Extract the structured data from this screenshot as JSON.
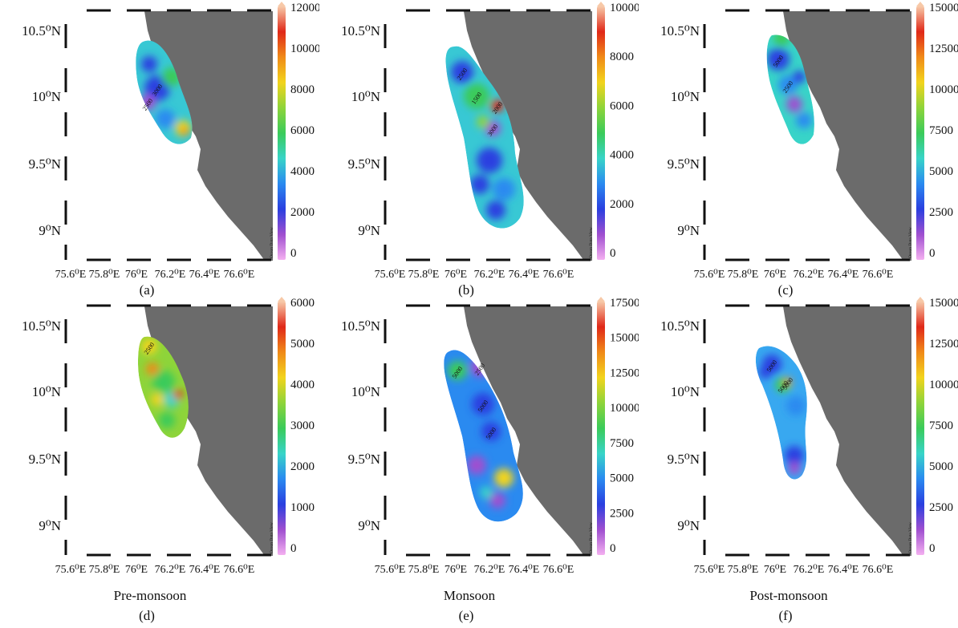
{
  "figure": {
    "panels": [
      {
        "id": "a",
        "label": "(a)",
        "season": "",
        "lat_ticks": [
          "10.5⁰N",
          "10⁰N",
          "9.5⁰N",
          "9⁰N"
        ],
        "lon_ticks": [
          "75.6⁰E",
          "75.8⁰E",
          "76⁰E",
          "76.2⁰E",
          "76.4⁰E",
          "76.6⁰E"
        ],
        "colorbar": {
          "ticks": [
            "12000",
            "10000",
            "8000",
            "6000",
            "4000",
            "2000",
            "0"
          ]
        },
        "contour_labels": [
          "3000",
          "2500"
        ],
        "watermark": "Ocean Data View"
      },
      {
        "id": "b",
        "label": "(b)",
        "season": "",
        "lat_ticks": [
          "10.5⁰N",
          "10⁰N",
          "9.5⁰N",
          "9⁰N"
        ],
        "lon_ticks": [
          "75.6⁰E",
          "75.8⁰E",
          "76⁰E",
          "76.2⁰E",
          "76.4⁰E",
          "76.6⁰E"
        ],
        "colorbar": {
          "ticks": [
            "10000",
            "8000",
            "6000",
            "4000",
            "2000",
            "0"
          ]
        },
        "contour_labels": [
          "2500",
          "1500",
          "2000",
          "3000"
        ],
        "watermark": "Ocean Data View"
      },
      {
        "id": "c",
        "label": "(c)",
        "season": "",
        "lat_ticks": [
          "10.5⁰N",
          "10⁰N",
          "9.5⁰N",
          "9⁰N"
        ],
        "lon_ticks": [
          "75.6⁰E",
          "75.8⁰E",
          "76⁰E",
          "76.2⁰E",
          "76.4⁰E",
          "76.6⁰E"
        ],
        "colorbar": {
          "ticks": [
            "15000",
            "12500",
            "10000",
            "7500",
            "5000",
            "2500",
            "0"
          ]
        },
        "contour_labels": [
          "5000",
          "2500"
        ],
        "watermark": "Ocean Data View"
      },
      {
        "id": "d",
        "label": "(d)",
        "season": "Pre-monsoon",
        "lat_ticks": [
          "10.5⁰N",
          "10⁰N",
          "9.5⁰N",
          "9⁰N"
        ],
        "lon_ticks": [
          "75.6⁰E",
          "75.8⁰E",
          "76⁰E",
          "76.2⁰E",
          "76.4⁰E",
          "76.6⁰E"
        ],
        "colorbar": {
          "ticks": [
            "6000",
            "5000",
            "4000",
            "3000",
            "2000",
            "1000",
            "0"
          ]
        },
        "contour_labels": [
          "2500"
        ],
        "watermark": "Ocean Data View"
      },
      {
        "id": "e",
        "label": "(e)",
        "season": "Monsoon",
        "lat_ticks": [
          "10.5⁰N",
          "10⁰N",
          "9.5⁰N",
          "9⁰N"
        ],
        "lon_ticks": [
          "75.6⁰E",
          "75.8⁰E",
          "76⁰E",
          "76.2⁰E",
          "76.4⁰E",
          "76.6⁰E"
        ],
        "colorbar": {
          "ticks": [
            "17500",
            "15000",
            "12500",
            "10000",
            "7500",
            "5000",
            "2500",
            "0"
          ]
        },
        "contour_labels": [
          "5000",
          "2500",
          "5000",
          "5000"
        ],
        "watermark": "Ocean Data View"
      },
      {
        "id": "f",
        "label": "(f)",
        "season": "Post-monsoon",
        "lat_ticks": [
          "10.5⁰N",
          "10⁰N",
          "9.5⁰N",
          "9⁰N"
        ],
        "lon_ticks": [
          "75.6⁰E",
          "75.8⁰E",
          "76⁰E",
          "76.2⁰E",
          "76.4⁰E",
          "76.6⁰E"
        ],
        "colorbar": {
          "ticks": [
            "15000",
            "12500",
            "10000",
            "7500",
            "5000",
            "2500",
            "0"
          ]
        },
        "contour_labels": [
          "5000",
          "5000",
          "5000"
        ],
        "watermark": "Ocean Data View"
      }
    ],
    "colors": {
      "land": "#6b6b6b",
      "frame": "#111111",
      "colormap": [
        "#f4b0f0",
        "#9f4fd0",
        "#2a3fe0",
        "#2a8af0",
        "#38d4c8",
        "#3acb5a",
        "#8ed43a",
        "#f2d41c",
        "#f08a18",
        "#e02818",
        "#f7c9a8"
      ]
    }
  }
}
